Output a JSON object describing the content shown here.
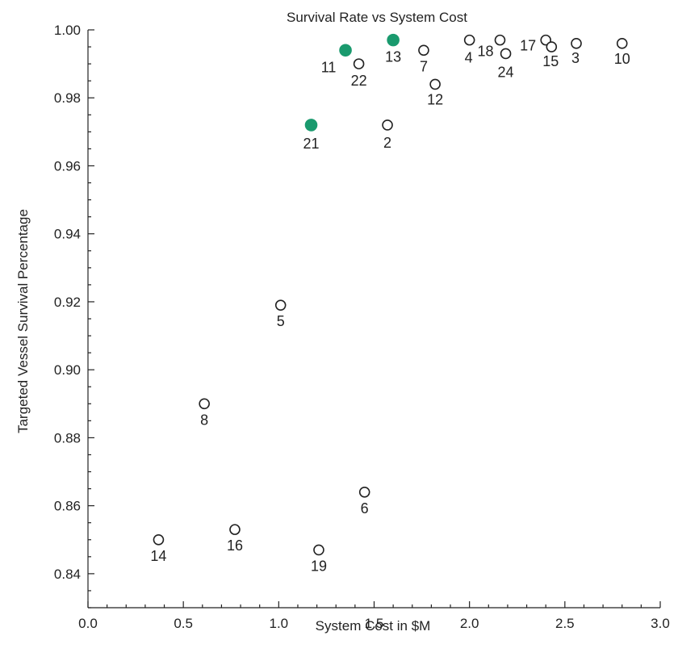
{
  "chart_data": {
    "type": "scatter",
    "title": "Survival Rate vs System Cost",
    "xlabel": "System Cost in $M",
    "ylabel": "Targeted Vessel Survival Percentage",
    "xlim": [
      0.0,
      3.0
    ],
    "ylim": [
      0.83,
      1.0
    ],
    "grid": false,
    "x_ticks": [
      "0.0",
      "0.5",
      "1.0",
      "1.5",
      "2.0",
      "2.5",
      "3.0"
    ],
    "y_ticks": [
      "0.84",
      "0.86",
      "0.88",
      "0.90",
      "0.92",
      "0.94",
      "0.96",
      "0.98",
      "1.00"
    ],
    "highlight_color": "#1a9a6e",
    "marker_color": "#222222",
    "points": [
      {
        "label": "14",
        "x": 0.37,
        "y": 0.85,
        "highlighted": false
      },
      {
        "label": "8",
        "x": 0.61,
        "y": 0.89,
        "highlighted": false
      },
      {
        "label": "16",
        "x": 0.77,
        "y": 0.853,
        "highlighted": false
      },
      {
        "label": "5",
        "x": 1.01,
        "y": 0.919,
        "highlighted": false
      },
      {
        "label": "21",
        "x": 1.17,
        "y": 0.972,
        "highlighted": true
      },
      {
        "label": "19",
        "x": 1.21,
        "y": 0.847,
        "highlighted": false
      },
      {
        "label": "11",
        "x": 1.35,
        "y": 0.994,
        "highlighted": true
      },
      {
        "label": "22",
        "x": 1.42,
        "y": 0.99,
        "highlighted": false
      },
      {
        "label": "6",
        "x": 1.45,
        "y": 0.864,
        "highlighted": false
      },
      {
        "label": "2",
        "x": 1.57,
        "y": 0.972,
        "highlighted": false
      },
      {
        "label": "13",
        "x": 1.6,
        "y": 0.997,
        "highlighted": true
      },
      {
        "label": "7",
        "x": 1.76,
        "y": 0.994,
        "highlighted": false
      },
      {
        "label": "12",
        "x": 1.82,
        "y": 0.984,
        "highlighted": false
      },
      {
        "label": "4",
        "x": 2.0,
        "y": 0.997,
        "highlighted": false
      },
      {
        "label": "18",
        "x": 2.16,
        "y": 0.997,
        "highlighted": false
      },
      {
        "label": "24",
        "x": 2.19,
        "y": 0.993,
        "highlighted": false
      },
      {
        "label": "17",
        "x": 2.4,
        "y": 0.997,
        "highlighted": false
      },
      {
        "label": "15",
        "x": 2.43,
        "y": 0.995,
        "highlighted": false
      },
      {
        "label": "3",
        "x": 2.56,
        "y": 0.996,
        "highlighted": false
      },
      {
        "label": "10",
        "x": 2.8,
        "y": 0.996,
        "highlighted": false
      }
    ]
  }
}
